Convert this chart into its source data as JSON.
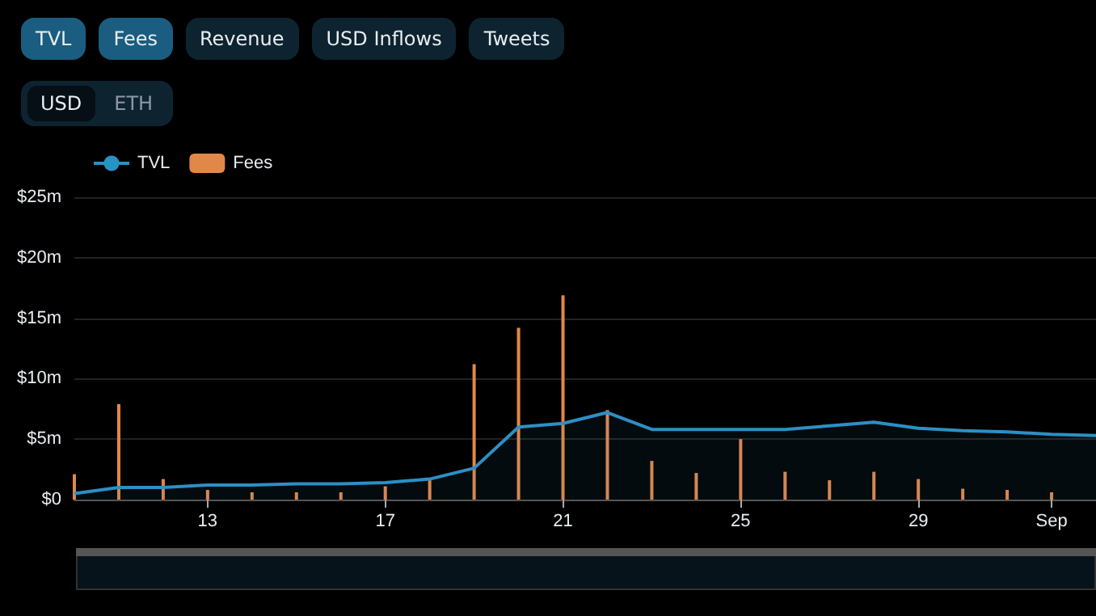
{
  "chart_data": {
    "type": "area",
    "annotations": [
      "TVL",
      "Fees",
      "Revenue",
      "USD Inflows",
      "Tweets",
      "USD",
      "ETH"
    ],
    "x": [
      "--08-10",
      "--08-11",
      "--08-12",
      "--08-13",
      "--08-14",
      "--08-15",
      "--08-16",
      "--08-17",
      "--08-18",
      "--08-19",
      "--08-20",
      "--08-21",
      "--08-22",
      "--08-23",
      "--08-24",
      "--08-25",
      "--08-26",
      "--08-27",
      "--08-28",
      "--08-29",
      "--08-30",
      "--08-31",
      "--09-01",
      "--09-02"
    ],
    "series": [
      {
        "name": "TVL",
        "color": "#2d8fc4",
        "values": [
          0.5,
          1.0,
          1.0,
          1.2,
          1.2,
          1.3,
          1.3,
          1.4,
          1.7,
          2.6,
          6.0,
          6.3,
          7.2,
          5.8,
          5.8,
          5.8,
          5.8,
          6.1,
          6.4,
          5.9,
          5.7,
          5.6,
          5.4,
          5.3
        ]
      },
      {
        "name": "Fees",
        "type": "bar",
        "color": "#e2874a",
        "values": [
          2.1,
          7.9,
          1.7,
          0.8,
          0.6,
          0.6,
          0.6,
          1.1,
          1.6,
          11.2,
          14.2,
          16.9,
          7.4,
          3.2,
          2.2,
          5.0,
          2.3,
          1.6,
          2.3,
          1.7,
          0.9,
          0.8,
          0.6,
          null
        ]
      }
    ],
    "xlim": [
      "--08-10",
      "--09-02"
    ],
    "xticks": [
      {
        "value": "--08-13",
        "label": "13"
      },
      {
        "value": "--08-17",
        "label": "17"
      },
      {
        "value": "--08-21",
        "label": "21"
      },
      {
        "value": "--08-25",
        "label": "25"
      },
      {
        "value": "--08-29",
        "label": "29"
      },
      {
        "value": "--09-01",
        "label": "Sep"
      }
    ],
    "ylim": [
      0,
      25
    ],
    "yticks": [
      {
        "value": 0,
        "label": "$0"
      },
      {
        "value": 5,
        "label": "$5m"
      },
      {
        "value": 10,
        "label": "$10m"
      },
      {
        "value": 15,
        "label": "$15m"
      },
      {
        "value": 20,
        "label": "$20m"
      },
      {
        "value": 25,
        "label": "$25m"
      }
    ],
    "grid": "y",
    "legend": "top left",
    "marker": "none"
  }
}
